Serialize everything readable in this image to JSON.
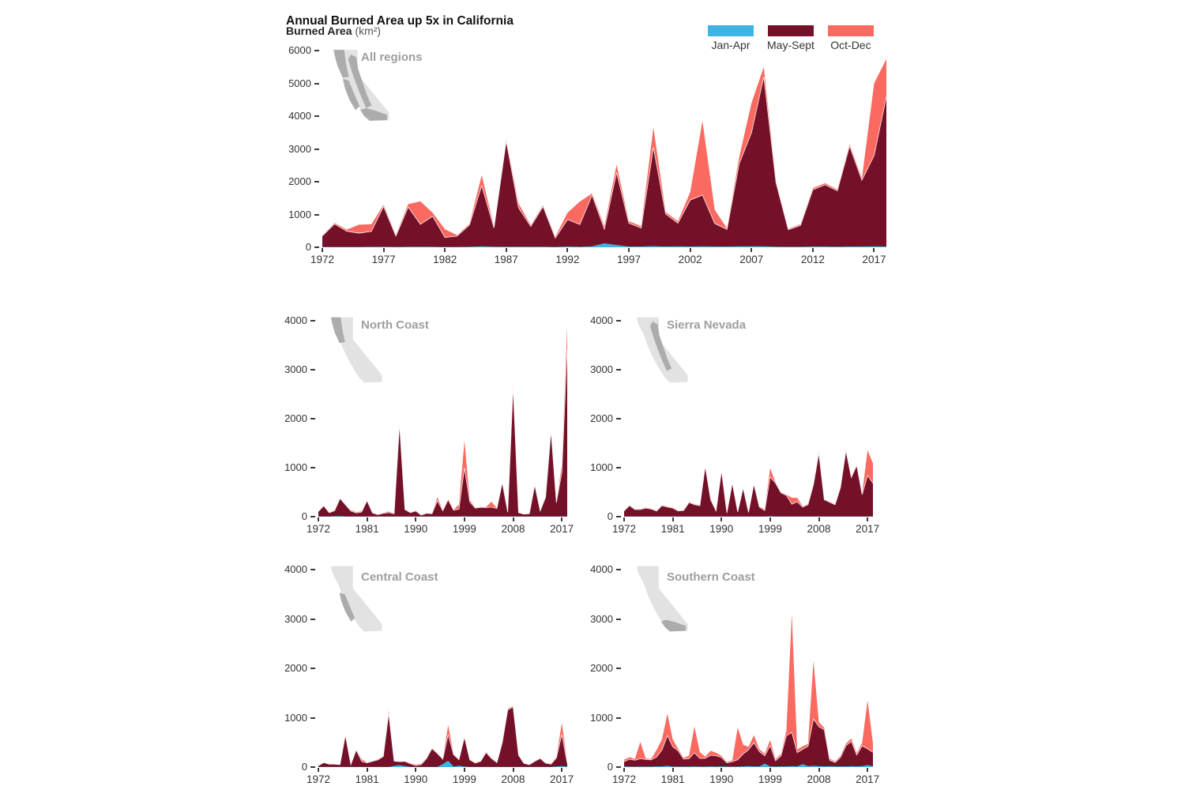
{
  "header": {
    "title": "Annual Burned Area up 5x in California",
    "subtitle_bold": "Burned Area",
    "subtitle_unit": " (km²)"
  },
  "legend": {
    "position": "top-right",
    "items": [
      {
        "label": "Jan-Apr",
        "color": "#3CB4E5"
      },
      {
        "label": "May-Sept",
        "color": "#741128"
      },
      {
        "label": "Oct-Dec",
        "color": "#FA6A60"
      }
    ]
  },
  "colors": {
    "jan_apr": "#3CB4E5",
    "may_sept": "#741128",
    "oct_dec": "#FA6A60",
    "map_state": "#E2E2E2",
    "map_region": "#ACACAC",
    "axis_text": "#333333",
    "region_label": "#9E9E9E",
    "background": "#FFFFFF"
  },
  "chart_data": [
    {
      "type": "area",
      "stacked": true,
      "title": "All regions",
      "region": "all",
      "xlabel": "",
      "ylabel": "Burned Area (km²)",
      "x_start": 1972,
      "x_end": 2018,
      "x_step": 1,
      "ylim": [
        0,
        6000
      ],
      "yticks": [
        0,
        1000,
        2000,
        3000,
        4000,
        5000,
        6000
      ],
      "xticks": [
        1972,
        1977,
        1982,
        1987,
        1992,
        1997,
        2002,
        2007,
        2012,
        2017
      ],
      "grid": false,
      "series": [
        {
          "name": "Jan-Apr",
          "color": "#3CB4E5",
          "values": [
            10,
            10,
            10,
            10,
            15,
            15,
            10,
            15,
            20,
            15,
            10,
            10,
            15,
            30,
            20,
            15,
            20,
            15,
            20,
            10,
            25,
            15,
            30,
            120,
            70,
            25,
            25,
            35,
            25,
            30,
            25,
            30,
            25,
            25,
            30,
            30,
            30,
            20,
            15,
            15,
            25,
            25,
            20,
            25,
            25,
            30,
            25
          ]
        },
        {
          "name": "May-Sept",
          "color": "#741128",
          "values": [
            330,
            700,
            480,
            420,
            470,
            1230,
            330,
            1210,
            680,
            930,
            290,
            330,
            670,
            1850,
            570,
            3220,
            1190,
            620,
            1220,
            270,
            820,
            680,
            1560,
            430,
            2210,
            710,
            560,
            3010,
            990,
            705,
            1415,
            1560,
            700,
            520,
            2520,
            3470,
            5170,
            1950,
            520,
            650,
            1730,
            1880,
            1700,
            3060,
            2020,
            2770,
            4570
          ]
        },
        {
          "name": "Oct-Dec",
          "color": "#FA6A60",
          "values": [
            20,
            30,
            50,
            260,
            215,
            50,
            30,
            90,
            700,
            105,
            250,
            30,
            30,
            320,
            40,
            45,
            130,
            40,
            40,
            40,
            210,
            700,
            50,
            90,
            240,
            60,
            60,
            610,
            60,
            60,
            240,
            2260,
            420,
            30,
            200,
            900,
            300,
            40,
            30,
            35,
            50,
            50,
            40,
            60,
            60,
            2200,
            1150
          ]
        }
      ]
    },
    {
      "type": "area",
      "stacked": true,
      "title": "North Coast",
      "region": "north_coast",
      "x_start": 1972,
      "x_end": 2018,
      "x_step": 1,
      "ylim": [
        0,
        4000
      ],
      "yticks": [
        0,
        1000,
        2000,
        3000,
        4000
      ],
      "xticks": [
        1972,
        1981,
        1990,
        1999,
        2008,
        2017
      ],
      "grid": false,
      "series": [
        {
          "name": "Jan-Apr",
          "color": "#3CB4E5",
          "values": [
            5,
            5,
            5,
            10,
            10,
            5,
            5,
            5,
            5,
            5,
            5,
            5,
            5,
            5,
            5,
            5,
            5,
            5,
            5,
            5,
            5,
            5,
            5,
            5,
            5,
            5,
            5,
            10,
            5,
            5,
            5,
            5,
            5,
            5,
            5,
            5,
            5,
            5,
            5,
            5,
            5,
            5,
            5,
            5,
            5,
            5,
            5
          ]
        },
        {
          "name": "May-Sept",
          "color": "#741128",
          "values": [
            100,
            215,
            75,
            110,
            360,
            240,
            110,
            70,
            90,
            320,
            70,
            35,
            65,
            75,
            55,
            1880,
            140,
            75,
            110,
            25,
            65,
            55,
            320,
            115,
            340,
            125,
            150,
            985,
            295,
            170,
            185,
            180,
            190,
            160,
            690,
            85,
            2650,
            75,
            45,
            55,
            640,
            110,
            390,
            1745,
            280,
            900,
            3420
          ]
        },
        {
          "name": "Oct-Dec",
          "color": "#FA6A60",
          "values": [
            5,
            10,
            5,
            10,
            10,
            10,
            15,
            20,
            15,
            10,
            10,
            5,
            5,
            25,
            5,
            15,
            10,
            5,
            10,
            5,
            5,
            5,
            70,
            10,
            20,
            10,
            95,
            555,
            35,
            10,
            10,
            10,
            110,
            10,
            15,
            10,
            50,
            5,
            5,
            5,
            15,
            10,
            10,
            15,
            10,
            150,
            460
          ]
        }
      ]
    },
    {
      "type": "area",
      "stacked": true,
      "title": "Sierra Nevada",
      "region": "sierra_nevada",
      "x_start": 1972,
      "x_end": 2018,
      "x_step": 1,
      "ylim": [
        0,
        4000
      ],
      "yticks": [
        0,
        1000,
        2000,
        3000,
        4000
      ],
      "xticks": [
        1972,
        1981,
        1990,
        1999,
        2008,
        2017
      ],
      "grid": false,
      "series": [
        {
          "name": "Jan-Apr",
          "color": "#3CB4E5",
          "values": [
            5,
            5,
            5,
            5,
            5,
            5,
            5,
            5,
            5,
            5,
            5,
            5,
            5,
            5,
            5,
            5,
            5,
            5,
            5,
            5,
            5,
            5,
            5,
            5,
            5,
            5,
            5,
            10,
            5,
            5,
            5,
            5,
            5,
            5,
            5,
            5,
            5,
            5,
            5,
            5,
            5,
            5,
            5,
            5,
            5,
            5,
            5
          ]
        },
        {
          "name": "May-Sept",
          "color": "#741128",
          "values": [
            110,
            220,
            140,
            140,
            170,
            150,
            110,
            220,
            190,
            170,
            110,
            120,
            280,
            240,
            220,
            1020,
            340,
            110,
            930,
            70,
            680,
            90,
            580,
            80,
            660,
            190,
            120,
            800,
            680,
            480,
            430,
            250,
            300,
            190,
            240,
            650,
            1290,
            340,
            290,
            240,
            590,
            1340,
            795,
            1040,
            445,
            835,
            675
          ]
        },
        {
          "name": "Oct-Dec",
          "color": "#FA6A60",
          "values": [
            10,
            10,
            10,
            10,
            10,
            10,
            10,
            10,
            10,
            10,
            10,
            10,
            15,
            10,
            10,
            15,
            10,
            10,
            10,
            10,
            10,
            10,
            10,
            10,
            10,
            10,
            25,
            180,
            15,
            15,
            15,
            130,
            80,
            15,
            15,
            15,
            40,
            10,
            10,
            10,
            15,
            30,
            15,
            15,
            15,
            515,
            405
          ]
        }
      ]
    },
    {
      "type": "area",
      "stacked": true,
      "title": "Central Coast",
      "region": "central_coast",
      "x_start": 1972,
      "x_end": 2018,
      "x_step": 1,
      "ylim": [
        0,
        4000
      ],
      "yticks": [
        0,
        1000,
        2000,
        3000,
        4000
      ],
      "xticks": [
        1972,
        1981,
        1990,
        1999,
        2008,
        2017
      ],
      "grid": false,
      "series": [
        {
          "name": "Jan-Apr",
          "color": "#3CB4E5",
          "values": [
            5,
            5,
            5,
            5,
            5,
            5,
            5,
            5,
            5,
            5,
            5,
            5,
            5,
            5,
            25,
            40,
            20,
            5,
            5,
            5,
            5,
            5,
            5,
            60,
            130,
            10,
            30,
            10,
            5,
            5,
            5,
            5,
            5,
            5,
            5,
            5,
            5,
            5,
            5,
            5,
            5,
            5,
            5,
            5,
            15,
            20,
            10
          ]
        },
        {
          "name": "May-Sept",
          "color": "#741128",
          "values": [
            25,
            85,
            55,
            55,
            45,
            640,
            45,
            340,
            110,
            80,
            110,
            140,
            210,
            1080,
            95,
            70,
            95,
            65,
            25,
            45,
            170,
            370,
            270,
            100,
            530,
            240,
            120,
            595,
            140,
            75,
            110,
            290,
            170,
            85,
            490,
            1150,
            1215,
            235,
            70,
            45,
            110,
            170,
            75,
            55,
            170,
            640,
            70
          ]
        },
        {
          "name": "Oct-Dec",
          "color": "#FA6A60",
          "values": [
            5,
            5,
            5,
            5,
            5,
            10,
            5,
            10,
            40,
            10,
            10,
            10,
            10,
            60,
            5,
            5,
            5,
            5,
            20,
            15,
            10,
            10,
            10,
            10,
            190,
            10,
            10,
            15,
            10,
            10,
            10,
            15,
            10,
            10,
            15,
            25,
            15,
            10,
            5,
            5,
            10,
            10,
            5,
            10,
            20,
            230,
            15
          ]
        }
      ]
    },
    {
      "type": "area",
      "stacked": true,
      "title": "Southern Coast",
      "region": "southern_coast",
      "x_start": 1972,
      "x_end": 2018,
      "x_step": 1,
      "ylim": [
        0,
        4000
      ],
      "yticks": [
        0,
        1000,
        2000,
        3000,
        4000
      ],
      "xticks": [
        1972,
        1981,
        1990,
        1999,
        2008,
        2017
      ],
      "grid": false,
      "series": [
        {
          "name": "Jan-Apr",
          "color": "#3CB4E5",
          "values": [
            15,
            10,
            10,
            10,
            10,
            10,
            15,
            15,
            25,
            10,
            10,
            10,
            10,
            15,
            10,
            10,
            15,
            10,
            15,
            10,
            10,
            10,
            15,
            20,
            15,
            15,
            70,
            15,
            10,
            15,
            15,
            20,
            15,
            60,
            20,
            25,
            20,
            15,
            20,
            15,
            15,
            15,
            20,
            15,
            20,
            40,
            20
          ]
        },
        {
          "name": "May-Sept",
          "color": "#741128",
          "values": [
            95,
            150,
            130,
            160,
            145,
            135,
            190,
            330,
            615,
            400,
            320,
            150,
            160,
            275,
            165,
            170,
            225,
            220,
            180,
            75,
            100,
            140,
            250,
            330,
            480,
            300,
            160,
            420,
            120,
            210,
            620,
            680,
            280,
            300,
            400,
            950,
            800,
            740,
            120,
            80,
            180,
            420,
            500,
            230,
            410,
            330,
            280
          ]
        },
        {
          "name": "Oct-Dec",
          "color": "#FA6A60",
          "values": [
            40,
            40,
            25,
            340,
            20,
            20,
            140,
            215,
            440,
            150,
            35,
            25,
            60,
            530,
            125,
            35,
            90,
            60,
            30,
            20,
            25,
            650,
            190,
            60,
            150,
            50,
            40,
            110,
            30,
            40,
            100,
            2400,
            60,
            60,
            50,
            1180,
            90,
            40,
            30,
            20,
            30,
            40,
            60,
            40,
            60,
            980,
            180
          ]
        }
      ]
    }
  ]
}
